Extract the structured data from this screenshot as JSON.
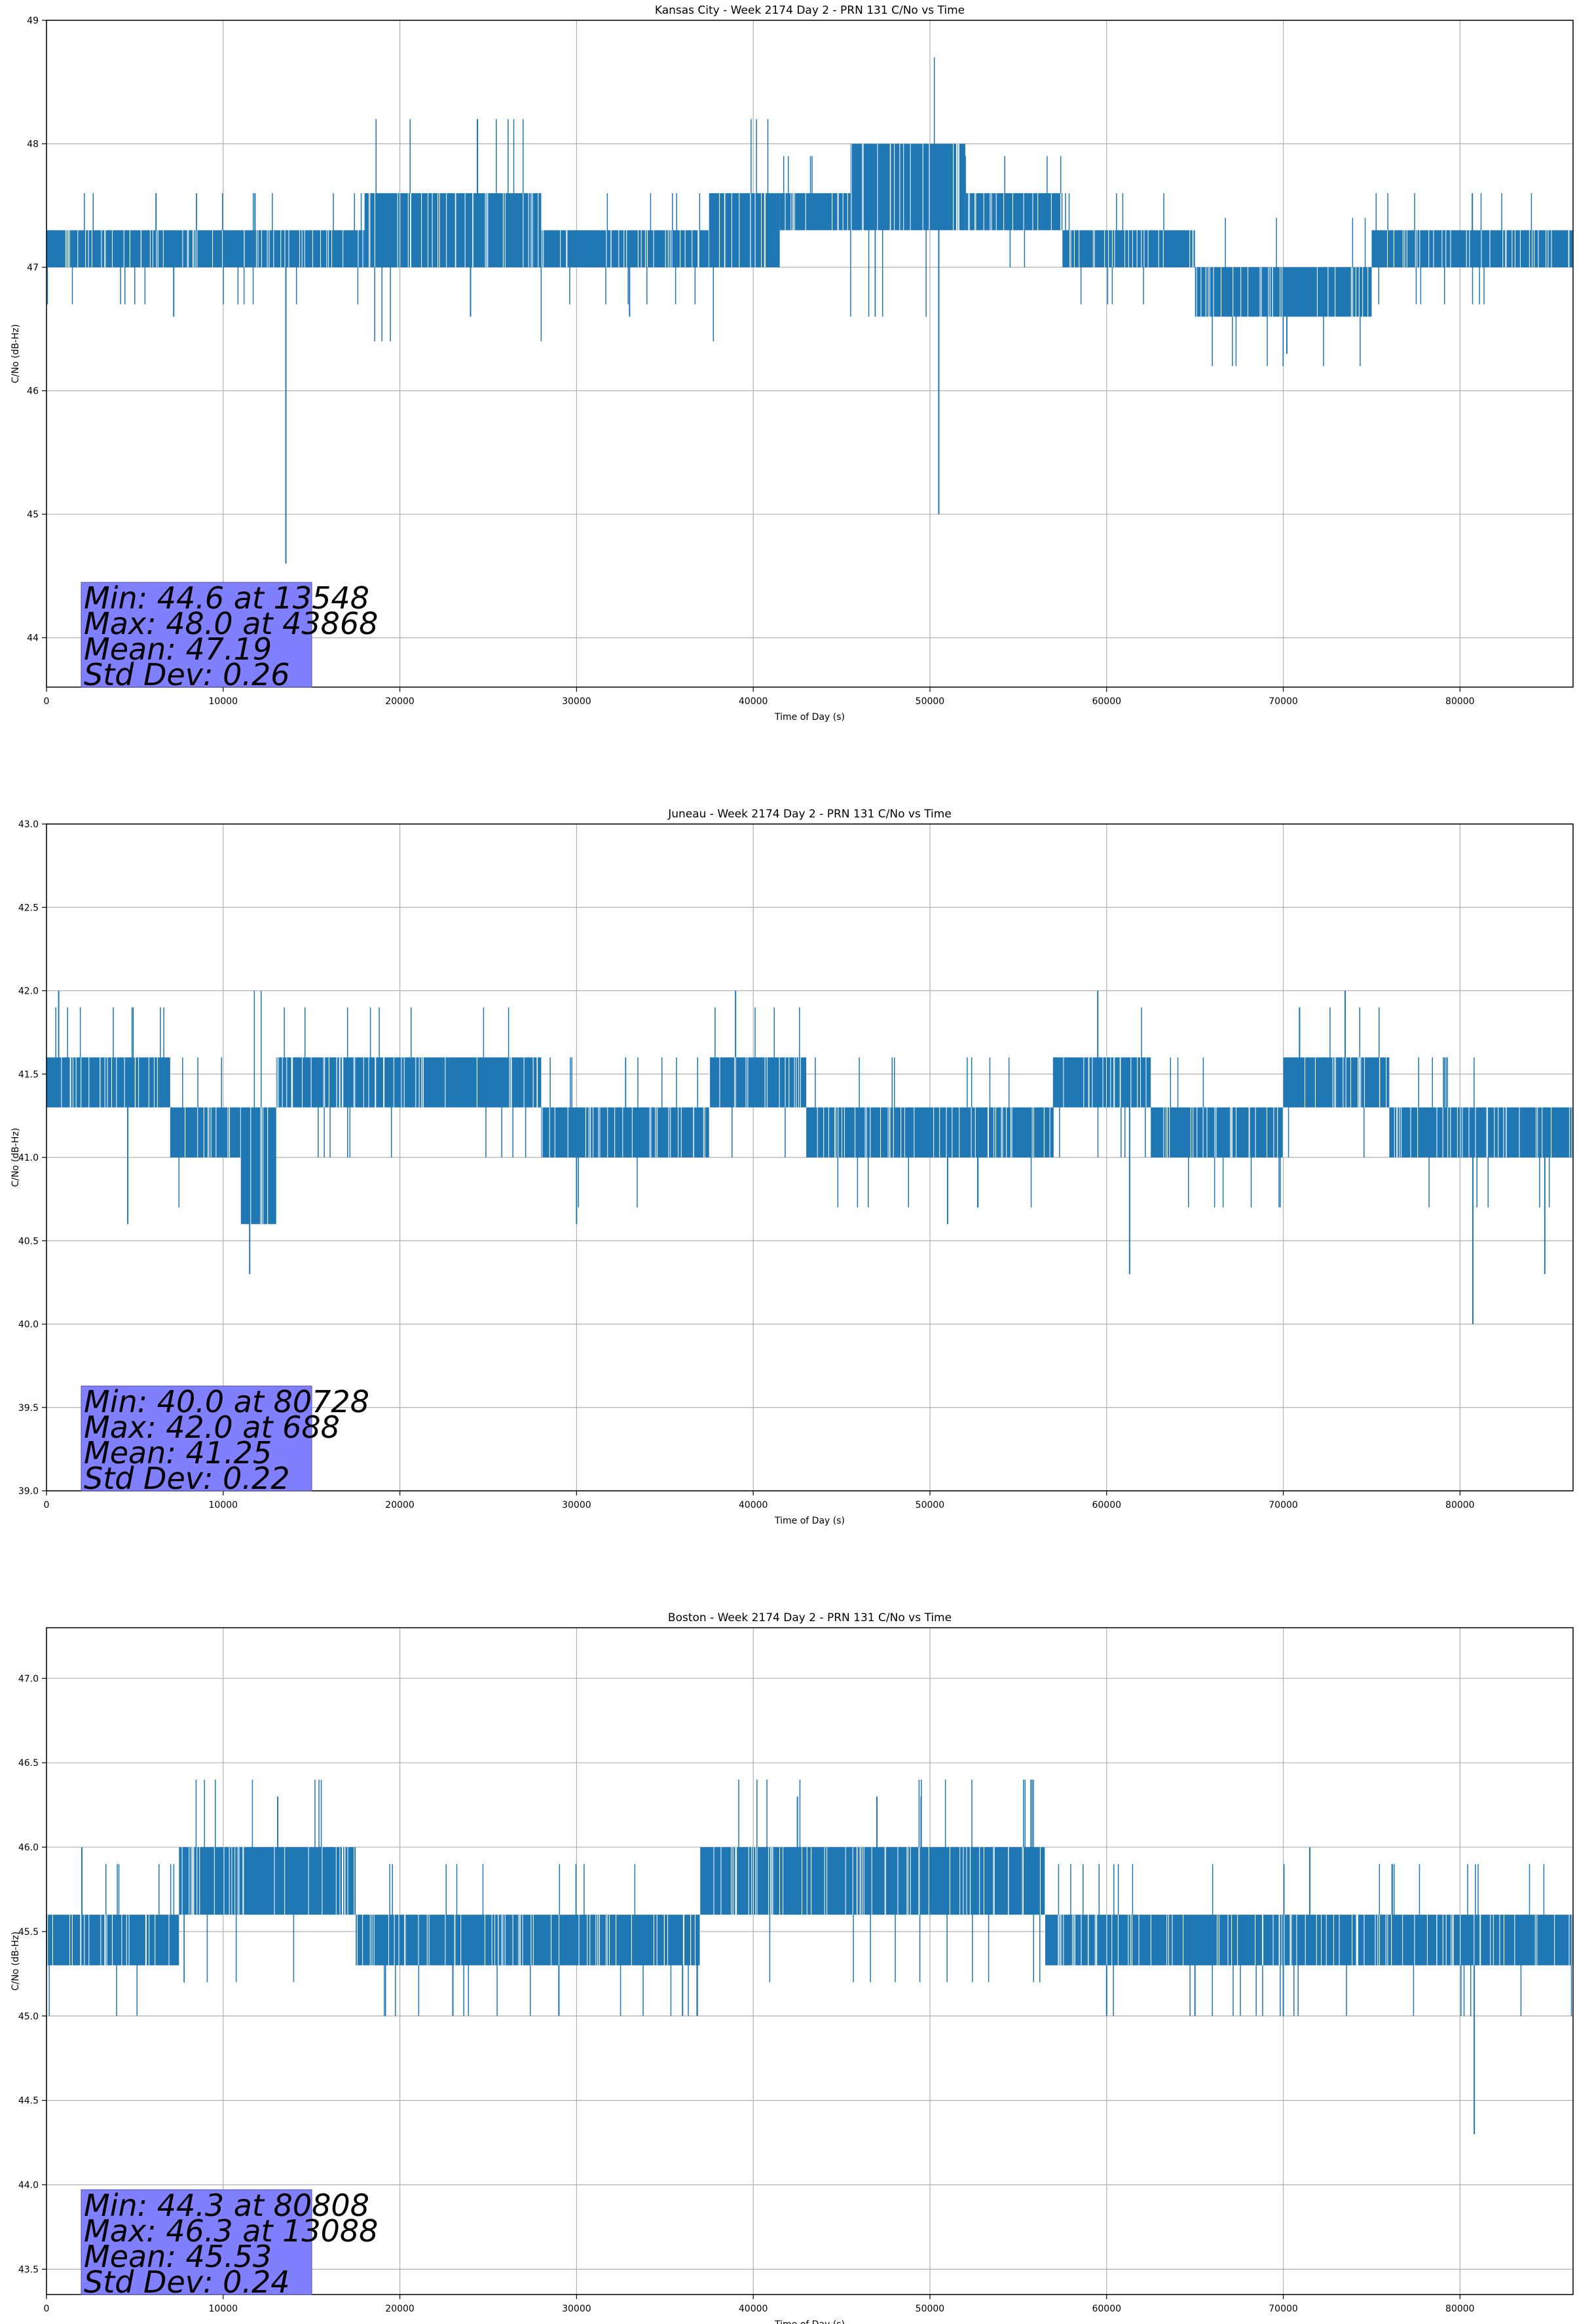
{
  "chart_data": [
    {
      "type": "line",
      "title": "Kansas City - Week 2174 Day 2 - PRN 131 C/No vs Time",
      "xlabel": "Time of Day (s)",
      "ylabel": "C/No (dB-Hz)",
      "xlim": [
        0,
        86400
      ],
      "ylim": [
        43.6,
        49
      ],
      "xticks": [
        0,
        10000,
        20000,
        30000,
        40000,
        50000,
        60000,
        70000,
        80000
      ],
      "yticks": [
        44,
        45,
        46,
        47,
        48,
        49
      ],
      "ytick_labels": [
        "44",
        "45",
        "46",
        "47",
        "48",
        "49"
      ],
      "grid": true,
      "line_color": "#1f77b4",
      "stats_box_color": "#8080ff",
      "stats": [
        "Min: 44.6 at 13548",
        "Max: 48.0 at 43868",
        "Mean: 47.19",
        "Std Dev: 0.26"
      ],
      "series": [
        {
          "band_segments": [
            {
              "x": [
                0,
                18000
              ],
              "y": [
                47.0,
                47.3
              ]
            },
            {
              "x": [
                18000,
                28000
              ],
              "y": [
                47.0,
                47.6
              ]
            },
            {
              "x": [
                28000,
                37500
              ],
              "y": [
                47.0,
                47.3
              ]
            },
            {
              "x": [
                37500,
                41500
              ],
              "y": [
                47.0,
                47.6
              ]
            },
            {
              "x": [
                41500,
                45500
              ],
              "y": [
                47.3,
                47.6
              ]
            },
            {
              "x": [
                45500,
                52000
              ],
              "y": [
                47.3,
                48.0
              ]
            },
            {
              "x": [
                52000,
                57500
              ],
              "y": [
                47.3,
                47.6
              ]
            },
            {
              "x": [
                57500,
                65000
              ],
              "y": [
                47.0,
                47.3
              ]
            },
            {
              "x": [
                65000,
                75000
              ],
              "y": [
                46.6,
                47.0
              ]
            },
            {
              "x": [
                75000,
                86400
              ],
              "y": [
                47.0,
                47.3
              ]
            }
          ],
          "spikes": [
            {
              "x": 13548,
              "y": 44.6
            },
            {
              "x": 50500,
              "y": 45.0
            },
            {
              "x": 70200,
              "y": 46.3
            },
            {
              "x": 7200,
              "y": 46.6
            },
            {
              "x": 24000,
              "y": 46.6
            },
            {
              "x": 33000,
              "y": 46.6
            },
            {
              "x": 6200,
              "y": 47.6
            },
            {
              "x": 11800,
              "y": 47.6
            },
            {
              "x": 80700,
              "y": 47.6
            }
          ]
        }
      ]
    },
    {
      "type": "line",
      "title": "Juneau - Week 2174 Day 2 - PRN 131 C/No vs Time",
      "xlabel": "Time of Day (s)",
      "ylabel": "C/No (dB-Hz)",
      "xlim": [
        0,
        86400
      ],
      "ylim": [
        39.0,
        43.0
      ],
      "xticks": [
        0,
        10000,
        20000,
        30000,
        40000,
        50000,
        60000,
        70000,
        80000
      ],
      "yticks": [
        39.0,
        39.5,
        40.0,
        40.5,
        41.0,
        41.5,
        42.0,
        42.5,
        43.0
      ],
      "ytick_labels": [
        "39.0",
        "39.5",
        "40.0",
        "40.5",
        "41.0",
        "41.5",
        "42.0",
        "42.5",
        "43.0"
      ],
      "grid": true,
      "line_color": "#1f77b4",
      "stats_box_color": "#8080ff",
      "stats": [
        "Min: 40.0 at 80728",
        "Max: 42.0 at 688",
        "Mean: 41.25",
        "Std Dev: 0.22"
      ],
      "series": [
        {
          "band_segments": [
            {
              "x": [
                0,
                7000
              ],
              "y": [
                41.3,
                41.6
              ]
            },
            {
              "x": [
                7000,
                11000
              ],
              "y": [
                41.0,
                41.3
              ]
            },
            {
              "x": [
                11000,
                13000
              ],
              "y": [
                40.6,
                41.3
              ]
            },
            {
              "x": [
                13000,
                28000
              ],
              "y": [
                41.3,
                41.6
              ]
            },
            {
              "x": [
                28000,
                37500
              ],
              "y": [
                41.0,
                41.3
              ]
            },
            {
              "x": [
                37500,
                43000
              ],
              "y": [
                41.3,
                41.6
              ]
            },
            {
              "x": [
                43000,
                50000
              ],
              "y": [
                41.0,
                41.3
              ]
            },
            {
              "x": [
                50000,
                57000
              ],
              "y": [
                41.0,
                41.3
              ]
            },
            {
              "x": [
                57000,
                62500
              ],
              "y": [
                41.3,
                41.6
              ]
            },
            {
              "x": [
                62500,
                70000
              ],
              "y": [
                41.0,
                41.3
              ]
            },
            {
              "x": [
                70000,
                76000
              ],
              "y": [
                41.3,
                41.6
              ]
            },
            {
              "x": [
                76000,
                86400
              ],
              "y": [
                41.0,
                41.3
              ]
            }
          ],
          "spikes": [
            {
              "x": 688,
              "y": 42.0
            },
            {
              "x": 39000,
              "y": 42.0
            },
            {
              "x": 59500,
              "y": 42.0
            },
            {
              "x": 73500,
              "y": 42.0
            },
            {
              "x": 11500,
              "y": 40.3
            },
            {
              "x": 61300,
              "y": 40.3
            },
            {
              "x": 80728,
              "y": 40.0
            },
            {
              "x": 84800,
              "y": 40.3
            },
            {
              "x": 4600,
              "y": 40.6
            },
            {
              "x": 30000,
              "y": 40.6
            },
            {
              "x": 51000,
              "y": 40.6
            }
          ]
        }
      ]
    },
    {
      "type": "line",
      "title": "Boston - Week 2174 Day 2 - PRN 131 C/No vs Time",
      "xlabel": "Time of Day (s)",
      "ylabel": "C/No (dB-Hz)",
      "xlim": [
        0,
        86400
      ],
      "ylim": [
        43.35,
        47.3
      ],
      "xticks": [
        0,
        10000,
        20000,
        30000,
        40000,
        50000,
        60000,
        70000,
        80000
      ],
      "yticks": [
        43.5,
        44.0,
        44.5,
        45.0,
        45.5,
        46.0,
        46.5,
        47.0
      ],
      "ytick_labels": [
        "43.5",
        "44.0",
        "44.5",
        "45.0",
        "45.5",
        "46.0",
        "46.5",
        "47.0"
      ],
      "grid": true,
      "line_color": "#1f77b4",
      "stats_box_color": "#8080ff",
      "stats": [
        "Min: 44.3 at 80808",
        "Max: 46.3 at 13088",
        "Mean: 45.53",
        "Std Dev: 0.24"
      ],
      "series": [
        {
          "band_segments": [
            {
              "x": [
                0,
                7500
              ],
              "y": [
                45.3,
                45.6
              ]
            },
            {
              "x": [
                7500,
                17500
              ],
              "y": [
                45.6,
                46.0
              ]
            },
            {
              "x": [
                17500,
                28500
              ],
              "y": [
                45.3,
                45.6
              ]
            },
            {
              "x": [
                28500,
                37000
              ],
              "y": [
                45.3,
                45.6
              ]
            },
            {
              "x": [
                37000,
                56500
              ],
              "y": [
                45.6,
                46.0
              ]
            },
            {
              "x": [
                56500,
                86400
              ],
              "y": [
                45.3,
                45.6
              ]
            }
          ],
          "spikes": [
            {
              "x": 13088,
              "y": 46.3
            },
            {
              "x": 42500,
              "y": 46.3
            },
            {
              "x": 47000,
              "y": 46.3
            },
            {
              "x": 49500,
              "y": 46.3
            },
            {
              "x": 80808,
              "y": 44.3
            },
            {
              "x": 23000,
              "y": 45.0
            },
            {
              "x": 29000,
              "y": 45.0
            },
            {
              "x": 36000,
              "y": 45.0
            },
            {
              "x": 60000,
              "y": 45.0
            },
            {
              "x": 65000,
              "y": 45.0
            },
            {
              "x": 70000,
              "y": 45.0
            },
            {
              "x": 71500,
              "y": 46.0
            },
            {
              "x": 2000,
              "y": 46.0
            }
          ]
        }
      ]
    }
  ]
}
